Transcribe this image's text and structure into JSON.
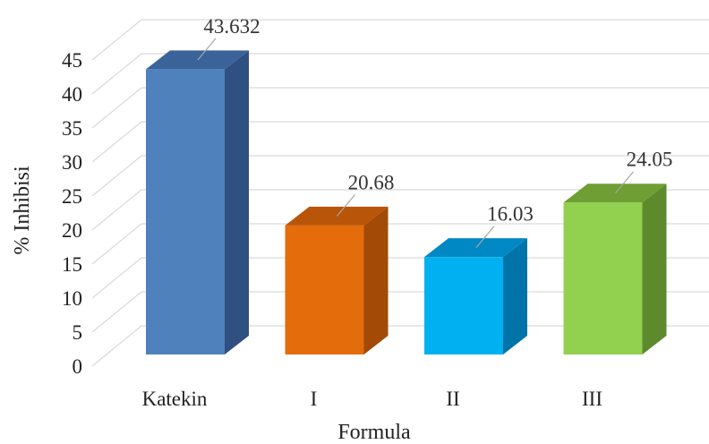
{
  "chart_data": {
    "type": "bar",
    "style": "3d-clustered-column",
    "categories": [
      "Katekin",
      "I",
      "II",
      "III"
    ],
    "values": [
      43.632,
      20.68,
      16.03,
      24.05
    ],
    "data_labels": [
      "43.632",
      "20.68",
      "16.03",
      "24.05"
    ],
    "colors": [
      "#4F81BD",
      "#E46C0A",
      "#00B0F0",
      "#92D050"
    ],
    "side_colors": [
      "#2F5081",
      "#A24A06",
      "#0074A8",
      "#5E8A2E"
    ],
    "top_colors": [
      "#3A6399",
      "#B85508",
      "#0088C4",
      "#6E9E34"
    ],
    "xlabel": "Formula",
    "ylabel": "% Inhibisi",
    "ylim": [
      0,
      45
    ],
    "yticks": [
      0,
      5,
      10,
      15,
      20,
      25,
      30,
      35,
      40,
      45
    ],
    "grid": true,
    "legend": "none"
  }
}
